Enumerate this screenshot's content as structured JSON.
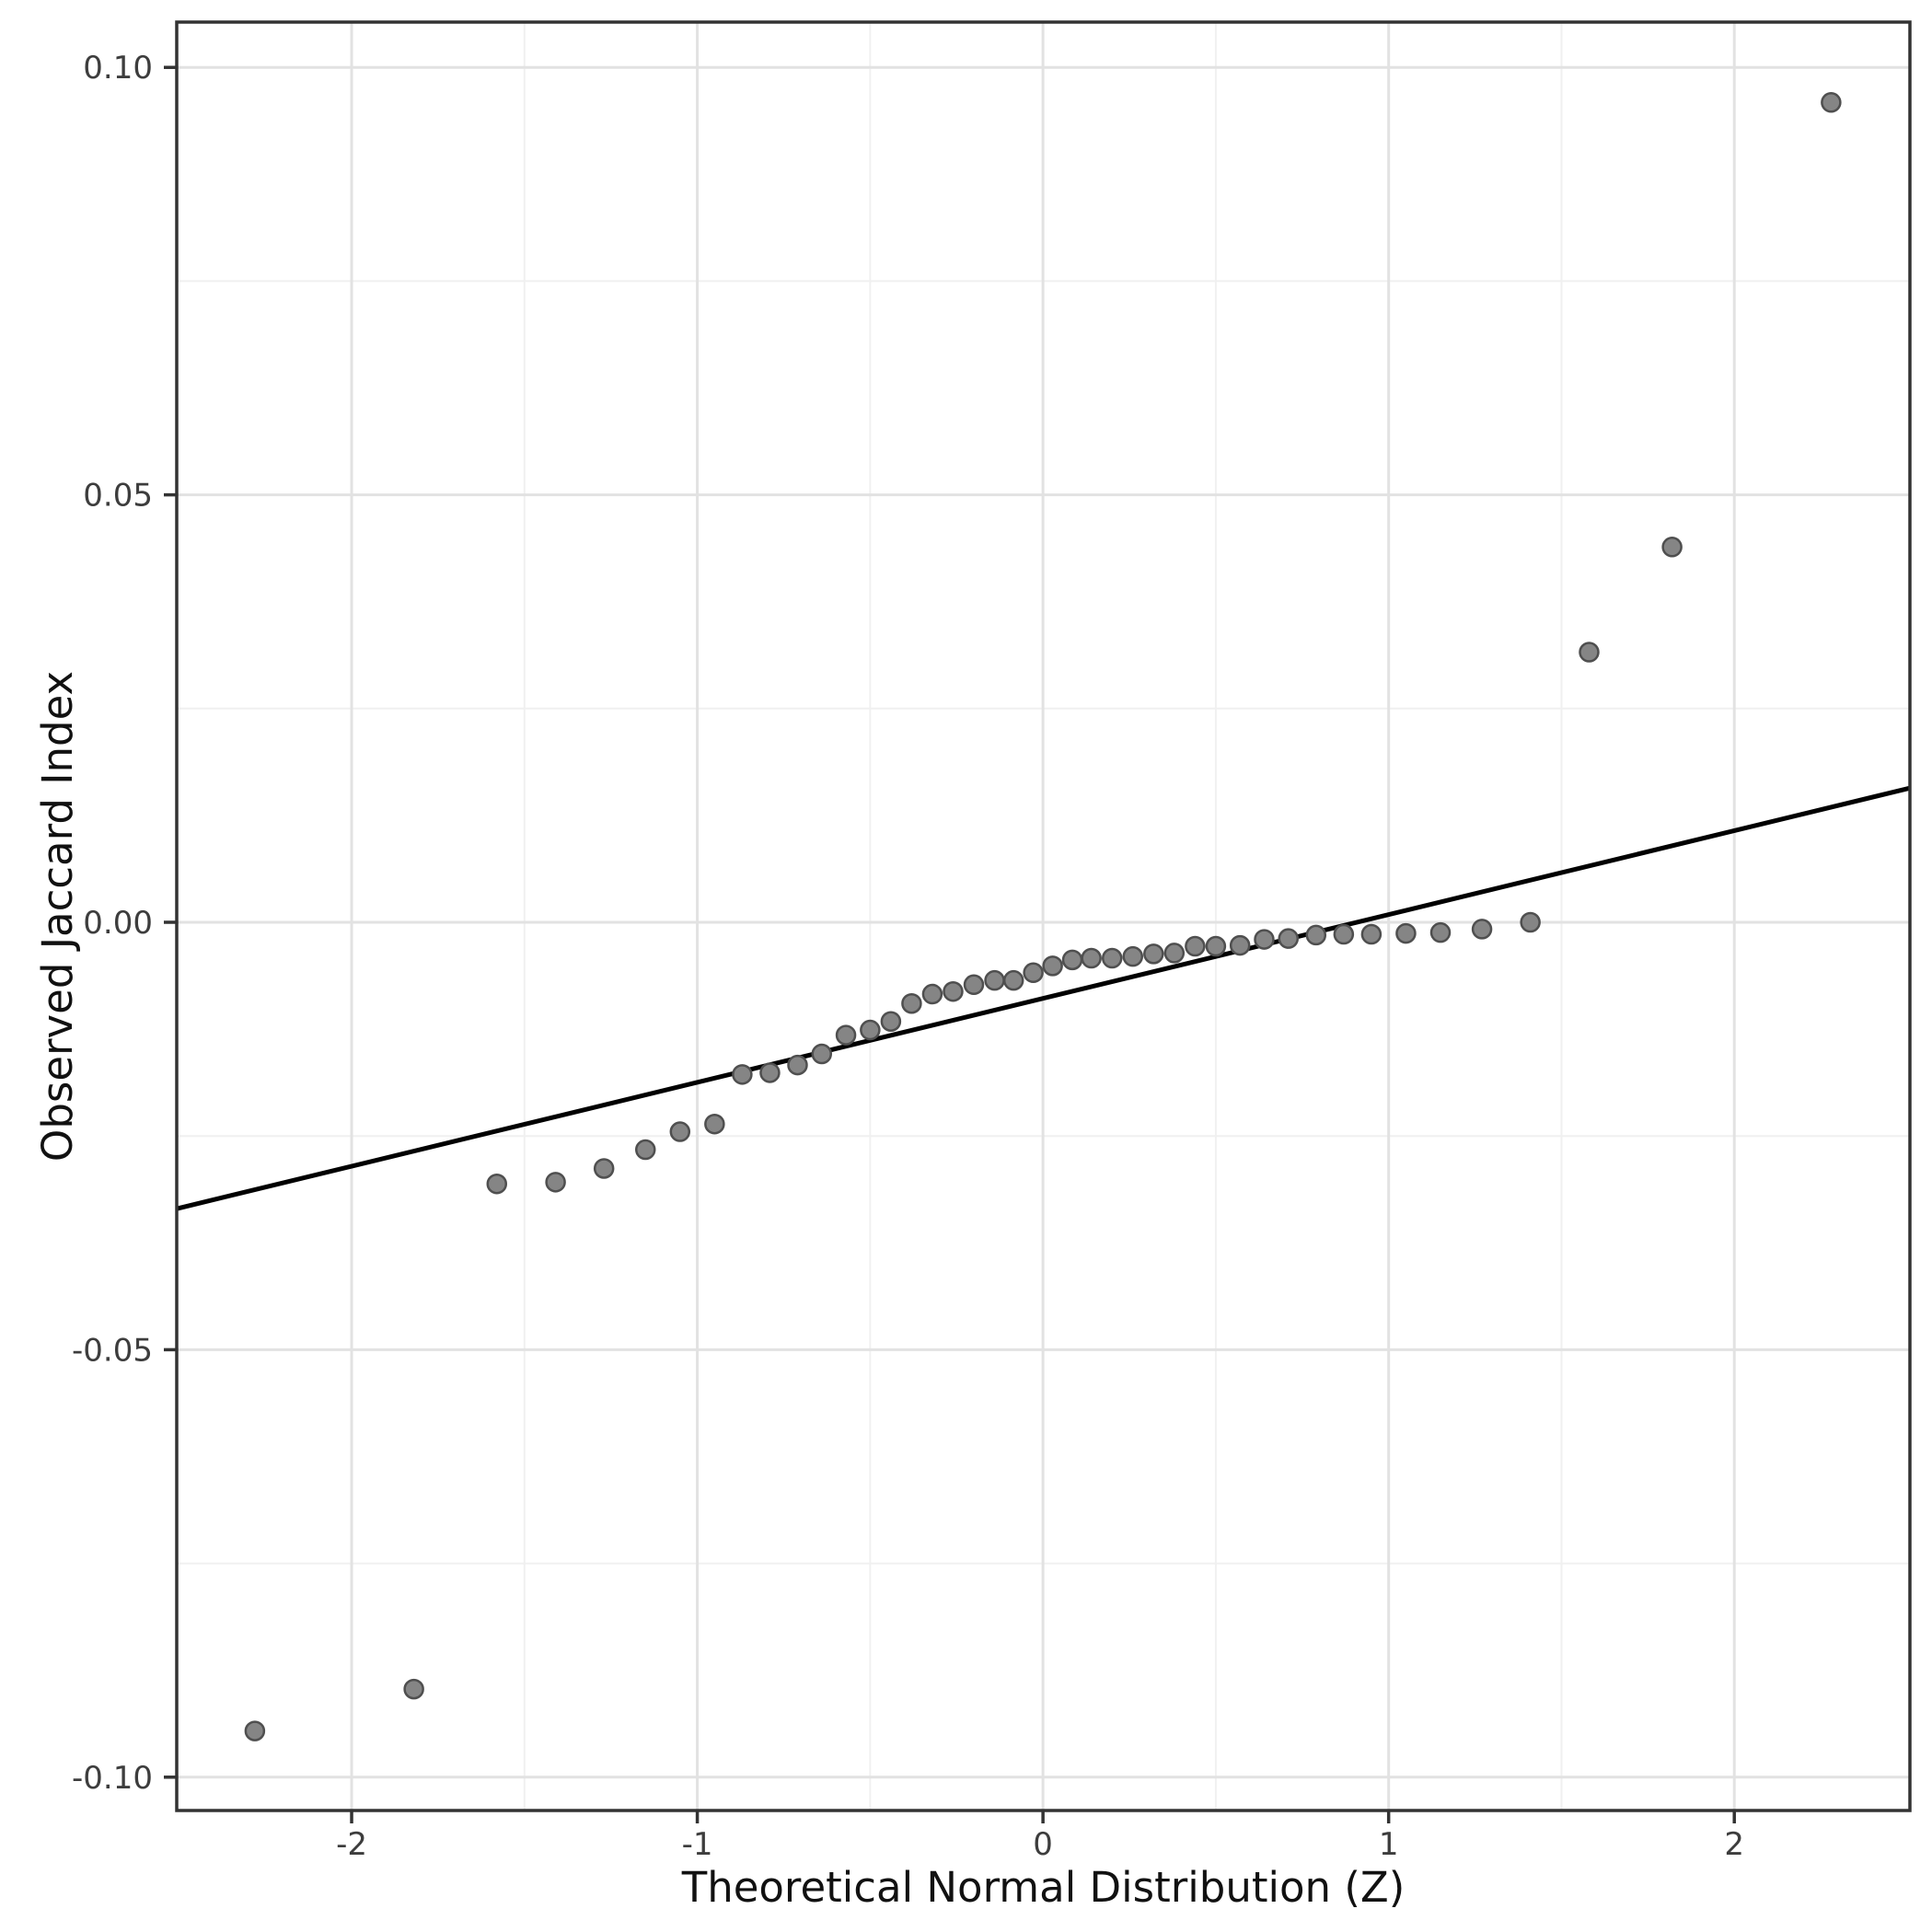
{
  "figure": {
    "background": "#ffffff"
  },
  "chart_data": {
    "type": "scatter",
    "title": "",
    "xlabel": "Theoretical Normal Distribution (Z)",
    "ylabel": "Observed Jaccard Index",
    "xlim": [
      -2.506,
      2.508
    ],
    "ylim": [
      -0.1039,
      0.1053
    ],
    "grid": "major+minor",
    "legend": "none",
    "x_ticks": {
      "values": [
        -2,
        -1,
        0,
        1,
        2
      ],
      "labels": [
        "-2",
        "-1",
        "0",
        "1",
        "2"
      ]
    },
    "y_ticks": {
      "values": [
        0.1,
        0.05,
        0.0,
        -0.05,
        -0.1
      ],
      "labels": [
        "0.10",
        "0.05",
        "0.00",
        "-0.05",
        "-0.10"
      ]
    },
    "x_minor_gridlines": [
      -1.5,
      -0.5,
      0.5,
      1.5
    ],
    "y_minor_gridlines": [
      0.075,
      0.025,
      -0.025,
      -0.075
    ],
    "series": [
      {
        "name": "observed-vs-theoretical-quantiles",
        "x": [
          -2.28,
          -1.82,
          -1.58,
          -1.41,
          -1.27,
          -1.15,
          -1.05,
          -0.95,
          -0.87,
          -0.79,
          -0.71,
          -0.64,
          -0.57,
          -0.5,
          -0.44,
          -0.38,
          -0.32,
          -0.26,
          -0.2,
          -0.14,
          -0.085,
          -0.028,
          0.028,
          0.085,
          0.14,
          0.2,
          0.26,
          0.32,
          0.38,
          0.44,
          0.5,
          0.57,
          0.64,
          0.71,
          0.79,
          0.87,
          0.95,
          1.05,
          1.15,
          1.27,
          1.41,
          1.58,
          1.82,
          2.28
        ],
        "y": [
          -0.0946,
          -0.0897,
          -0.0306,
          -0.0304,
          -0.0288,
          -0.0266,
          -0.0245,
          -0.0236,
          -0.0178,
          -0.0176,
          -0.0167,
          -0.0154,
          -0.0132,
          -0.0126,
          -0.0116,
          -0.0095,
          -0.0084,
          -0.0081,
          -0.0073,
          -0.0068,
          -0.0068,
          -0.0059,
          -0.0051,
          -0.0044,
          -0.0042,
          -0.0042,
          -0.004,
          -0.0037,
          -0.0036,
          -0.0028,
          -0.0028,
          -0.0027,
          -0.002,
          -0.0019,
          -0.0015,
          -0.0014,
          -0.0014,
          -0.0013,
          -0.0012,
          -0.0008,
          0.0,
          0.0316,
          0.0439,
          0.0959
        ]
      }
    ],
    "reference_line": {
      "x1": -2.506,
      "y1": -0.0335,
      "x2": 2.508,
      "y2": 0.0157
    },
    "style": {
      "point_fill": "#858585",
      "point_edge": "#4f4f4f",
      "point_radius": 10,
      "point_edge_width": 2.5,
      "line_color": "#000000",
      "line_width": 5,
      "grid_major_color": "#e2e2e2",
      "grid_minor_color": "#f0f0f0",
      "panel_border_color": "#333333",
      "tick_mark_color": "#333333",
      "tick_label_color": "#3d3d3d",
      "axis_title_color": "#111111"
    }
  }
}
